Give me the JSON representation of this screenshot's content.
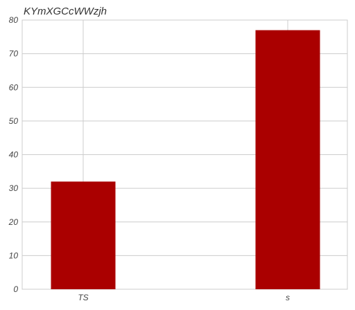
{
  "chart_data": {
    "type": "bar",
    "title": "KYmXGCcWWzjh",
    "xlabel": "",
    "ylabel": "",
    "categories": [
      "TS",
      "s"
    ],
    "values": [
      32,
      77
    ],
    "ylim": [
      0,
      80
    ],
    "yticks": [
      0,
      10,
      20,
      30,
      40,
      50,
      60,
      70,
      80
    ],
    "grid": true,
    "legend": "none",
    "bar_color": "#aa0000"
  }
}
